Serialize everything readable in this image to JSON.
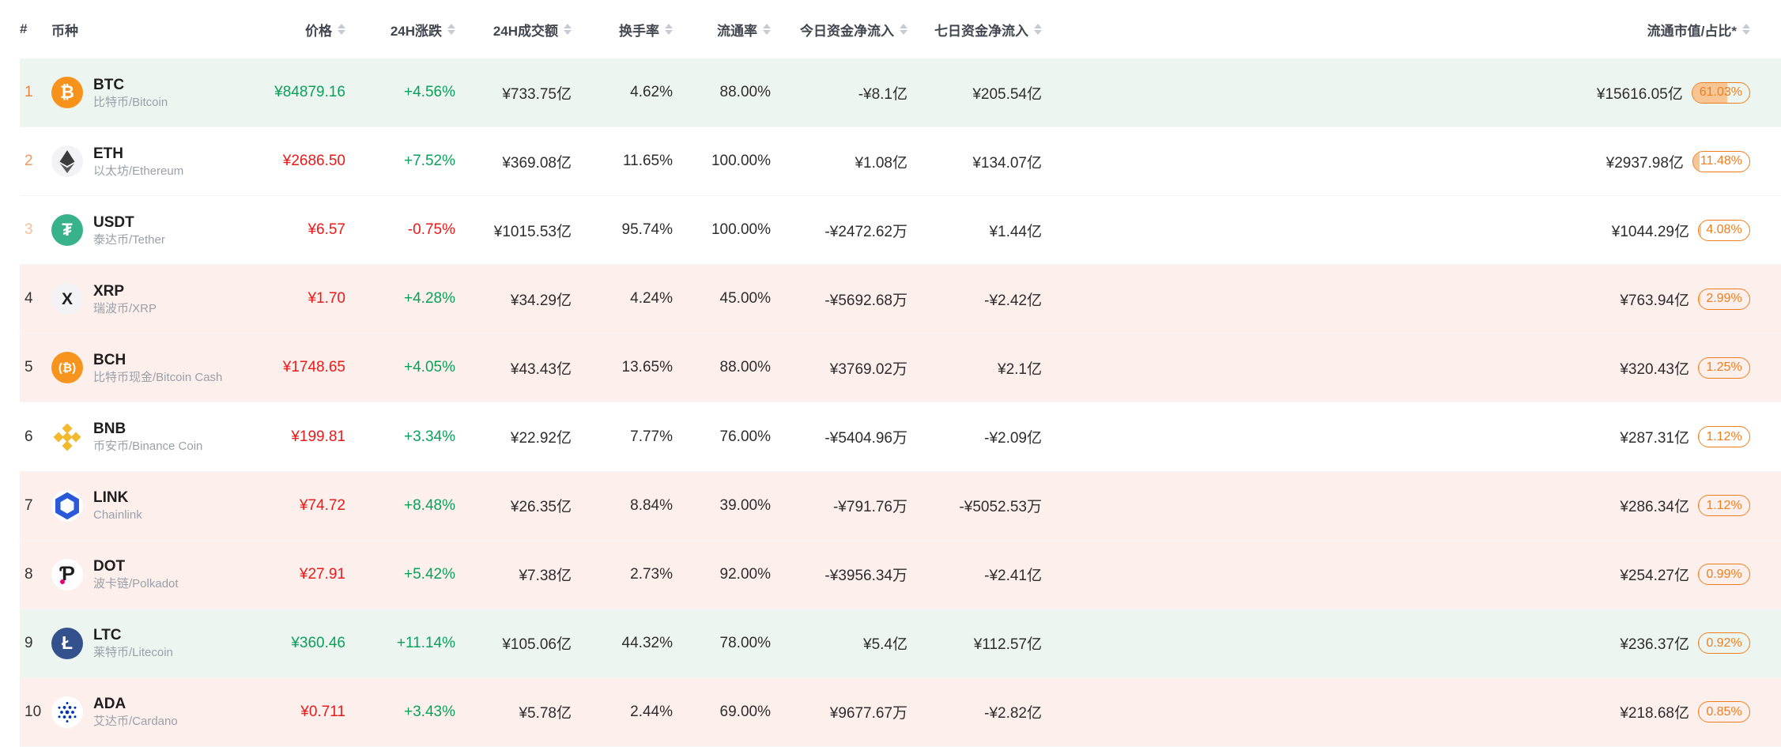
{
  "colors": {
    "up_green": "#0aa05b",
    "down_red": "#eb1a1a",
    "badge_orange": "#ee7e1e",
    "badge_fill": "#f7c694",
    "row_tint_up": "#edf5f1",
    "row_tint_down": "#fdf0ec",
    "row_tint_none": "#ffffff",
    "rank_tier1": "#e8853f",
    "rank_tier2": "#ec9a5f",
    "rank_tier3": "#f4c096",
    "rank_normal": "#333333",
    "sort_icon": "#c6cad2"
  },
  "table": {
    "columns": [
      {
        "key": "rank",
        "label": "#",
        "sortable": false,
        "align": "left"
      },
      {
        "key": "coin",
        "label": "币种",
        "sortable": false,
        "align": "left"
      },
      {
        "key": "price",
        "label": "价格",
        "sortable": true,
        "align": "right"
      },
      {
        "key": "change",
        "label": "24H涨跌",
        "sortable": true,
        "align": "right"
      },
      {
        "key": "volume",
        "label": "24H成交额",
        "sortable": true,
        "align": "right"
      },
      {
        "key": "turnover",
        "label": "换手率",
        "sortable": true,
        "align": "right"
      },
      {
        "key": "circulation",
        "label": "流通率",
        "sortable": true,
        "align": "right"
      },
      {
        "key": "inflow_today",
        "label": "今日资金净流入",
        "sortable": true,
        "align": "right"
      },
      {
        "key": "inflow_7d",
        "label": "七日资金净流入",
        "sortable": true,
        "align": "right"
      },
      {
        "key": "market_cap",
        "label": "流通市值/占比*",
        "sortable": true,
        "align": "right"
      }
    ],
    "rows": [
      {
        "rank": "1",
        "rank_tier": "tier1",
        "symbol": "BTC",
        "name": "比特币/Bitcoin",
        "tint": "up",
        "icon": {
          "kind": "text",
          "bg": "#f7931a",
          "fg": "#ffffff",
          "glyph": "₿",
          "size": 22
        },
        "price": "¥84879.16",
        "price_dir": "up",
        "change": "+4.56%",
        "change_dir": "up",
        "volume": "¥733.75亿",
        "turnover": "4.62%",
        "circulation": "88.00%",
        "inflow_today": "-¥8.1亿",
        "inflow_7d": "¥205.54亿",
        "market_cap": "¥15616.05亿",
        "dominance": "61.03%",
        "dominance_pct": 61.03
      },
      {
        "rank": "2",
        "rank_tier": "tier2",
        "symbol": "ETH",
        "name": "以太坊/Ethereum",
        "tint": "none",
        "icon": {
          "kind": "eth",
          "bg": "#f3f3f5",
          "fg": "#3c3c3d"
        },
        "price": "¥2686.50",
        "price_dir": "down",
        "change": "+7.52%",
        "change_dir": "up",
        "volume": "¥369.08亿",
        "turnover": "11.65%",
        "circulation": "100.00%",
        "inflow_today": "¥1.08亿",
        "inflow_7d": "¥134.07亿",
        "market_cap": "¥2937.98亿",
        "dominance": "11.48%",
        "dominance_pct": 11.48
      },
      {
        "rank": "3",
        "rank_tier": "tier3",
        "symbol": "USDT",
        "name": "泰达币/Tether",
        "tint": "none",
        "icon": {
          "kind": "text",
          "bg": "#38b28b",
          "fg": "#ffffff",
          "glyph": "₮",
          "size": 22
        },
        "price": "¥6.57",
        "price_dir": "down",
        "change": "-0.75%",
        "change_dir": "down",
        "volume": "¥1015.53亿",
        "turnover": "95.74%",
        "circulation": "100.00%",
        "inflow_today": "-¥2472.62万",
        "inflow_7d": "¥1.44亿",
        "market_cap": "¥1044.29亿",
        "dominance": "4.08%",
        "dominance_pct": 4.08
      },
      {
        "rank": "4",
        "rank_tier": "normal",
        "symbol": "XRP",
        "name": "瑞波币/XRP",
        "tint": "down",
        "icon": {
          "kind": "text",
          "bg": "#f3f3f5",
          "fg": "#1f1f1f",
          "glyph": "X",
          "size": 21
        },
        "price": "¥1.70",
        "price_dir": "down",
        "change": "+4.28%",
        "change_dir": "up",
        "volume": "¥34.29亿",
        "turnover": "4.24%",
        "circulation": "45.00%",
        "inflow_today": "-¥5692.68万",
        "inflow_7d": "-¥2.42亿",
        "market_cap": "¥763.94亿",
        "dominance": "2.99%",
        "dominance_pct": 2.99
      },
      {
        "rank": "5",
        "rank_tier": "normal",
        "symbol": "BCH",
        "name": "比特币现金/Bitcoin Cash",
        "tint": "down",
        "icon": {
          "kind": "text",
          "bg": "#f7941d",
          "fg": "#ffffff",
          "glyph": "(₿)",
          "size": 15
        },
        "price": "¥1748.65",
        "price_dir": "down",
        "change": "+4.05%",
        "change_dir": "up",
        "volume": "¥43.43亿",
        "turnover": "13.65%",
        "circulation": "88.00%",
        "inflow_today": "¥3769.02万",
        "inflow_7d": "¥2.1亿",
        "market_cap": "¥320.43亿",
        "dominance": "1.25%",
        "dominance_pct": 1.25
      },
      {
        "rank": "6",
        "rank_tier": "normal",
        "symbol": "BNB",
        "name": "币安币/Binance Coin",
        "tint": "none",
        "icon": {
          "kind": "bnb",
          "bg": "#ffffff",
          "fg": "#f3ba2f"
        },
        "price": "¥199.81",
        "price_dir": "down",
        "change": "+3.34%",
        "change_dir": "up",
        "volume": "¥22.92亿",
        "turnover": "7.77%",
        "circulation": "76.00%",
        "inflow_today": "-¥5404.96万",
        "inflow_7d": "-¥2.09亿",
        "market_cap": "¥287.31亿",
        "dominance": "1.12%",
        "dominance_pct": 1.12
      },
      {
        "rank": "7",
        "rank_tier": "normal",
        "symbol": "LINK",
        "name": "Chainlink",
        "tint": "down",
        "icon": {
          "kind": "link",
          "bg": "#fbfcfd",
          "fg": "#2a5ada"
        },
        "price": "¥74.72",
        "price_dir": "down",
        "change": "+8.48%",
        "change_dir": "up",
        "volume": "¥26.35亿",
        "turnover": "8.84%",
        "circulation": "39.00%",
        "inflow_today": "-¥791.76万",
        "inflow_7d": "-¥5052.53万",
        "market_cap": "¥286.34亿",
        "dominance": "1.12%",
        "dominance_pct": 1.12
      },
      {
        "rank": "8",
        "rank_tier": "normal",
        "symbol": "DOT",
        "name": "波卡链/Polkadot",
        "tint": "down",
        "icon": {
          "kind": "dot",
          "bg": "#ffffff",
          "fg": "#1e1e1e",
          "accent": "#e6007a"
        },
        "price": "¥27.91",
        "price_dir": "down",
        "change": "+5.42%",
        "change_dir": "up",
        "volume": "¥7.38亿",
        "turnover": "2.73%",
        "circulation": "92.00%",
        "inflow_today": "-¥3956.34万",
        "inflow_7d": "-¥2.41亿",
        "market_cap": "¥254.27亿",
        "dominance": "0.99%",
        "dominance_pct": 0.99
      },
      {
        "rank": "9",
        "rank_tier": "normal",
        "symbol": "LTC",
        "name": "莱特币/Litecoin",
        "tint": "up",
        "icon": {
          "kind": "text",
          "bg": "#33518c",
          "fg": "#ffffff",
          "glyph": "Ł",
          "size": 23
        },
        "price": "¥360.46",
        "price_dir": "up",
        "change": "+11.14%",
        "change_dir": "up",
        "volume": "¥105.06亿",
        "turnover": "44.32%",
        "circulation": "78.00%",
        "inflow_today": "¥5.4亿",
        "inflow_7d": "¥112.57亿",
        "market_cap": "¥236.37亿",
        "dominance": "0.92%",
        "dominance_pct": 0.92
      },
      {
        "rank": "10",
        "rank_tier": "normal",
        "symbol": "ADA",
        "name": "艾达币/Cardano",
        "tint": "down",
        "icon": {
          "kind": "ada",
          "bg": "#ffffff",
          "fg": "#0033ad"
        },
        "price": "¥0.711",
        "price_dir": "down",
        "change": "+3.43%",
        "change_dir": "up",
        "volume": "¥5.78亿",
        "turnover": "2.44%",
        "circulation": "69.00%",
        "inflow_today": "¥9677.67万",
        "inflow_7d": "-¥2.82亿",
        "market_cap": "¥218.68亿",
        "dominance": "0.85%",
        "dominance_pct": 0.85
      }
    ]
  }
}
